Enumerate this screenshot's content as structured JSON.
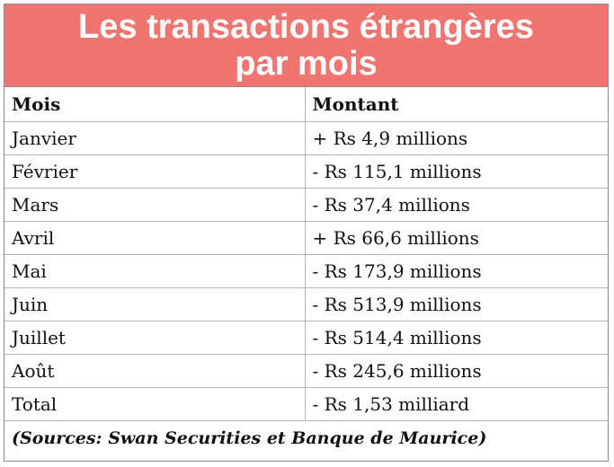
{
  "title": {
    "line1": "Les transactions étrangères",
    "line2": "par mois"
  },
  "table": {
    "headers": [
      "Mois",
      "Montant"
    ],
    "rows": [
      {
        "mois": "Janvier",
        "montant": "+ Rs 4,9 millions"
      },
      {
        "mois": "Février",
        "montant": "- Rs 115,1 millions"
      },
      {
        "mois": "Mars",
        "montant": "- Rs 37,4 millions"
      },
      {
        "mois": "Avril",
        "montant": "+ Rs 66,6 millions"
      },
      {
        "mois": "Mai",
        "montant": "- Rs 173,9 millions"
      },
      {
        "mois": "Juin",
        "montant": "- Rs 513,9 millions"
      },
      {
        "mois": "Juillet",
        "montant": "- Rs 514,4 millions"
      },
      {
        "mois": "Août",
        "montant": "- Rs 245,6 millions"
      },
      {
        "mois": "Total",
        "montant": "- Rs 1,53 milliard"
      }
    ],
    "source": "(Sources: Swan Securities et Banque de Maurice)"
  },
  "colors": {
    "title_bg": "#f07470",
    "title_text": "#ffffff"
  }
}
